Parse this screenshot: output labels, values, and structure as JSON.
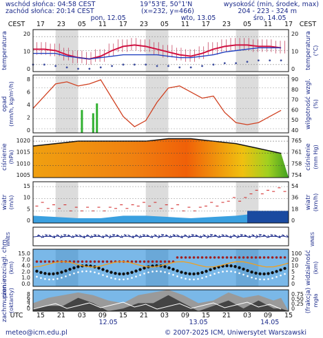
{
  "header": {
    "sunrise": "wschód słońca: 04:58 CEST",
    "sunset": "zachód słońca: 20:14 CEST",
    "coords": "19°53'E, 50°1'N",
    "grid": "(x=232, y=466)",
    "elev_label": "wysokość (min, środek, max)",
    "elev_values": "204 - 223 - 324 m"
  },
  "time_axis": {
    "tz_left": "CEST",
    "tz_right": "CEST",
    "utc_label": "UTC",
    "top_hours": [
      "17",
      "23",
      "05",
      "11",
      "17",
      "23",
      "05",
      "11",
      "17",
      "23",
      "05",
      "11",
      "17"
    ],
    "bottom_hours": [
      "15",
      "21",
      "03",
      "09",
      "15",
      "21",
      "03",
      "09",
      "15",
      "21",
      "03",
      "09",
      "15"
    ],
    "top_dates": [
      "pon, 12.05",
      "wto, 13.05",
      "śro, 14.05"
    ],
    "bottom_dates": [
      "12.05",
      "13.05",
      "14.05"
    ]
  },
  "panels": [
    {
      "id": "temp",
      "left_label": "temperatura",
      "right_label": "temperatura",
      "left_unit": "",
      "right_unit": "(°C)",
      "left_ticks": [
        "20",
        "10",
        "0"
      ],
      "right_ticks": [
        "20",
        "10",
        "0"
      ]
    },
    {
      "id": "precip",
      "left_label": "opad",
      "left_unit": "(mm/h, kg/m²/h)",
      "right_label": "wilgotność wzgl.",
      "right_unit": "(%)",
      "left_ticks": [
        "8",
        "6",
        "4",
        "2",
        "0"
      ],
      "right_ticks": [
        "90",
        "80",
        "70",
        "60",
        "50",
        "40"
      ]
    },
    {
      "id": "pressure",
      "left_label": "ciśnienie",
      "left_unit": "(hPa)",
      "right_label": "ciśnienie",
      "right_unit": "(mm Hg)",
      "left_ticks": [
        "1020",
        "1015",
        "1010",
        "1005"
      ],
      "right_ticks": [
        "765",
        "761",
        "758",
        "754"
      ]
    },
    {
      "id": "wind",
      "left_label": "wiatr",
      "left_unit": "(m/s)",
      "right_label": "wiatr",
      "right_unit": "(km/h)",
      "left_ticks": [
        "15",
        "10",
        "5",
        "0"
      ],
      "right_ticks": [
        "54",
        "36",
        "18",
        "0"
      ]
    },
    {
      "id": "winddir",
      "left_label": "WNES",
      "right_label": "WNES"
    },
    {
      "id": "visibility",
      "left_label": "pion. rozciągł. chm.",
      "left_unit": "(km)",
      "right_label": "widzialność",
      "right_unit": "(km)",
      "left_ticks": [
        "15.0",
        "7.0",
        "4.0",
        "2.0",
        "1.0",
        "0.0"
      ],
      "right_ticks": [
        "100",
        "20",
        "10",
        "5",
        "2",
        "0"
      ]
    },
    {
      "id": "cloud",
      "left_label": "zachmurzenie",
      "left_unit": "(oktanty)",
      "right_label": "(frakcja)",
      "right_unit": "mgła",
      "left_ticks": [
        "8",
        "6",
        "4",
        "2",
        "0"
      ],
      "right_ticks": [
        "0.75",
        "0.50",
        "0.25",
        "0"
      ]
    }
  ],
  "chart_data": [
    {
      "type": "line",
      "title": "temperatura",
      "ylabel": "(°C)",
      "ylim": [
        -5,
        25
      ],
      "x_hours": [
        0,
        3,
        6,
        9,
        12,
        15,
        18,
        21,
        24,
        27,
        30,
        33,
        36,
        39,
        42,
        45,
        48,
        51,
        54,
        57,
        60,
        63,
        66
      ],
      "series": [
        {
          "name": "temperature",
          "values": [
            11,
            11,
            10,
            7,
            5,
            4,
            6,
            10,
            13,
            14,
            13,
            11,
            9,
            7,
            6,
            8,
            11,
            13,
            14,
            14,
            13,
            13,
            12
          ]
        },
        {
          "name": "dew",
          "values": [
            8,
            8,
            8,
            6,
            5,
            4,
            5,
            6,
            7,
            7,
            7,
            7,
            6,
            5,
            5,
            6,
            7,
            9,
            10,
            11,
            12,
            12,
            12
          ]
        },
        {
          "name": "wind chill",
          "values": [
            0,
            0,
            -1,
            -2,
            -3,
            -3,
            -2,
            -1,
            0,
            0,
            0,
            -1,
            -1,
            -2,
            -2,
            -1,
            0,
            1,
            1,
            2,
            3,
            3,
            3
          ]
        }
      ]
    },
    {
      "type": "line",
      "title": "opad / wilgotność wzgl.",
      "ylabel": "(%)",
      "ylim": [
        40,
        90
      ],
      "x_hours": [
        0,
        3,
        6,
        9,
        12,
        15,
        18,
        21,
        24,
        27,
        30,
        33,
        36,
        39,
        42,
        45,
        48,
        51,
        54,
        57,
        60,
        63,
        66
      ],
      "series": [
        {
          "name": "wilgotność",
          "values": [
            60,
            72,
            84,
            86,
            82,
            84,
            88,
            70,
            52,
            42,
            48,
            66,
            80,
            82,
            76,
            70,
            72,
            56,
            46,
            44,
            46,
            52,
            58
          ]
        }
      ],
      "precip": [
        {
          "h": 13,
          "v": 3.5
        },
        {
          "h": 16,
          "v": 3
        },
        {
          "h": 17,
          "v": 4.5
        }
      ]
    },
    {
      "type": "area",
      "title": "ciśnienie",
      "ylabel": "(hPa)",
      "ylim": [
        1005,
        1022
      ],
      "x_hours": [
        0,
        6,
        12,
        18,
        24,
        30,
        36,
        42,
        48,
        54,
        60,
        66
      ],
      "values": [
        1018,
        1019,
        1020,
        1020,
        1020,
        1020,
        1021,
        1021,
        1020,
        1019,
        1017,
        1015
      ]
    },
    {
      "type": "area",
      "title": "wiatr",
      "ylabel": "(m/s)",
      "ylim": [
        0,
        17
      ],
      "x_hours": [
        0,
        6,
        12,
        18,
        24,
        30,
        36,
        42,
        48,
        54,
        60,
        66
      ],
      "values": [
        3,
        2.5,
        2,
        2,
        3,
        3,
        2.5,
        2,
        2.5,
        3,
        4,
        4.5
      ],
      "gust": [
        7,
        6,
        5,
        5,
        6,
        7,
        6,
        5,
        7,
        9,
        12,
        13
      ]
    },
    {
      "type": "scatter",
      "title": "zachmurzenie",
      "ylabel": "(oktanty)",
      "ylim": [
        0,
        8
      ],
      "x_hours": [
        0,
        4,
        8,
        12,
        16,
        20,
        24,
        28,
        32,
        36,
        40,
        44,
        48,
        52,
        56,
        60,
        64,
        66
      ],
      "values": [
        3,
        5,
        6,
        7,
        6,
        4,
        3,
        6,
        7,
        8,
        6,
        3,
        4,
        7,
        5,
        6,
        4,
        5
      ]
    }
  ],
  "footer": {
    "email": "meteo@icm.edu.pl",
    "copyright": "© 2007-2025 ICM, Uniwersytet Warszawski"
  }
}
